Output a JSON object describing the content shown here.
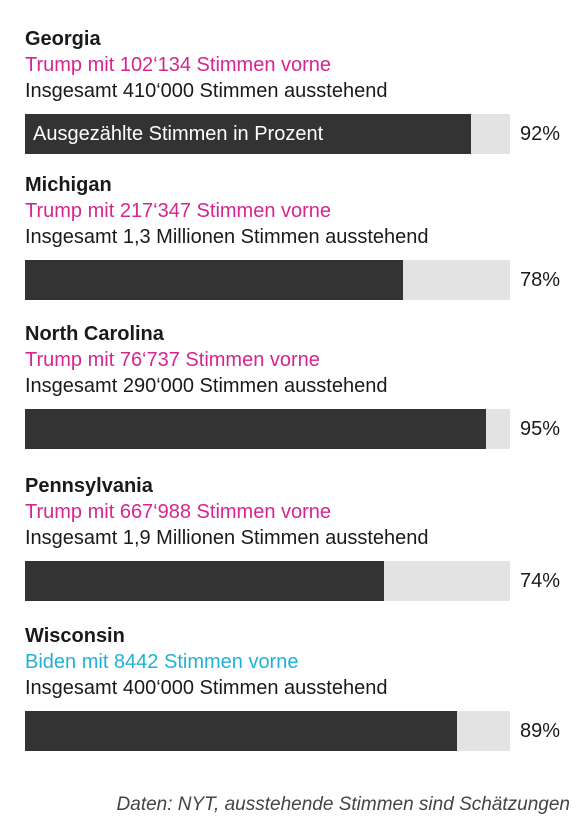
{
  "chart_data": {
    "type": "bar",
    "bar_label": "Ausgezählte Stimmen in Prozent",
    "colors": {
      "fill": "#333333",
      "track": "#e3e3e3",
      "trump": "#d6258f",
      "biden": "#1fb2d6"
    },
    "states": [
      {
        "name": "Georgia",
        "leader": "trump",
        "lead_text": "Trump mit 102‘134 Stimmen vorne",
        "outstanding_text": "Insgesamt 410‘000 Stimmen ausstehend",
        "value": 92,
        "value_label": "92%"
      },
      {
        "name": "Michigan",
        "leader": "trump",
        "lead_text": "Trump mit 217‘347 Stimmen vorne",
        "outstanding_text": "Insgesamt 1,3 Millionen Stimmen ausstehend",
        "value": 78,
        "value_label": "78%"
      },
      {
        "name": "North Carolina",
        "leader": "trump",
        "lead_text": "Trump mit 76‘737 Stimmen vorne",
        "outstanding_text": "Insgesamt 290‘000 Stimmen ausstehend",
        "value": 95,
        "value_label": "95%"
      },
      {
        "name": "Pennsylvania",
        "leader": "trump",
        "lead_text": "Trump mit 667‘988 Stimmen vorne",
        "outstanding_text": "Insgesamt 1,9 Millionen Stimmen ausstehend",
        "value": 74,
        "value_label": "74%"
      },
      {
        "name": "Wisconsin",
        "leader": "biden",
        "lead_text": "Biden mit 8442 Stimmen vorne",
        "outstanding_text": "Insgesamt 400‘000 Stimmen ausstehend",
        "value": 89,
        "value_label": "89%"
      }
    ],
    "xlim": [
      0,
      100
    ],
    "source": "Daten: NYT, ausstehende Stimmen sind Schätzungen"
  }
}
